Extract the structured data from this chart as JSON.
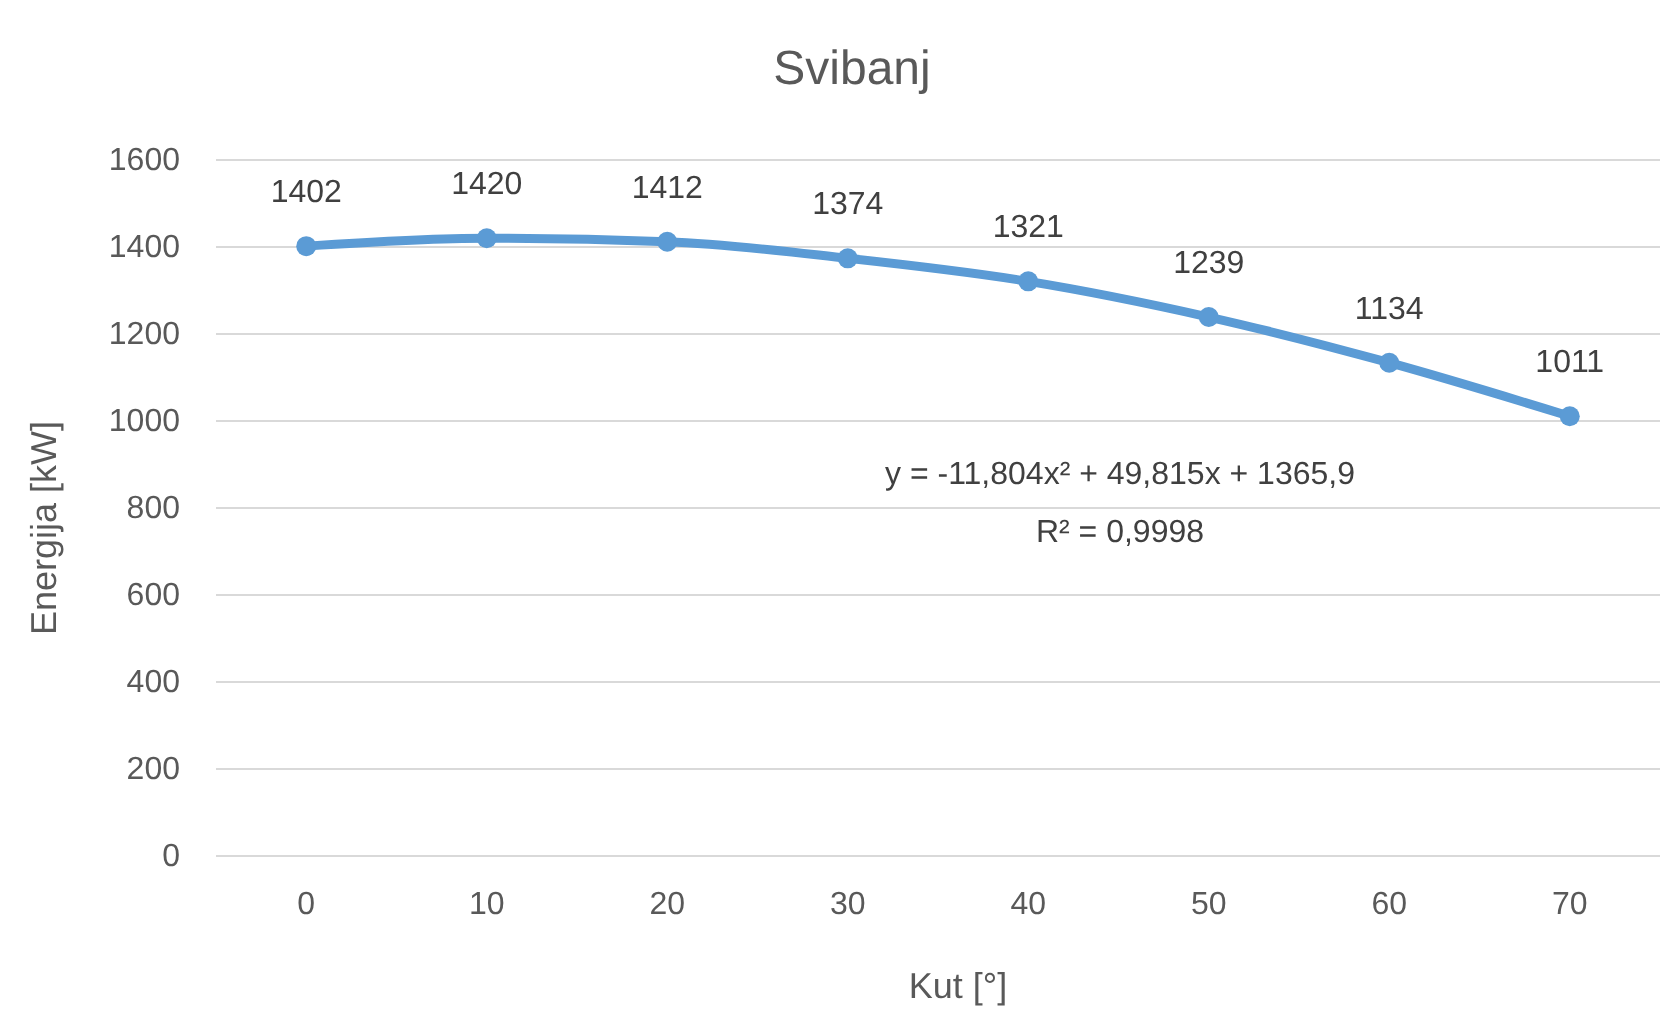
{
  "chart_data": {
    "type": "line",
    "title": "Svibanj",
    "xlabel": "Kut [°]",
    "ylabel": "Energija [kW]",
    "categories": [
      "0",
      "10",
      "20",
      "30",
      "40",
      "50",
      "60",
      "70"
    ],
    "series": [
      {
        "color": "#5b9bd5",
        "values": [
          1402,
          1420,
          1412,
          1374,
          1321,
          1239,
          1134,
          1011
        ]
      }
    ],
    "ylim": [
      0,
      1600
    ],
    "yticks": [
      0,
      200,
      400,
      600,
      800,
      1000,
      1200,
      1400,
      1600
    ],
    "grid": "y",
    "marker": "circle",
    "line_style": "solid",
    "data_labels": true,
    "annotations": [
      "y = -11,804x² + 49,815x + 1365,9",
      "R² = 0,9998"
    ]
  }
}
